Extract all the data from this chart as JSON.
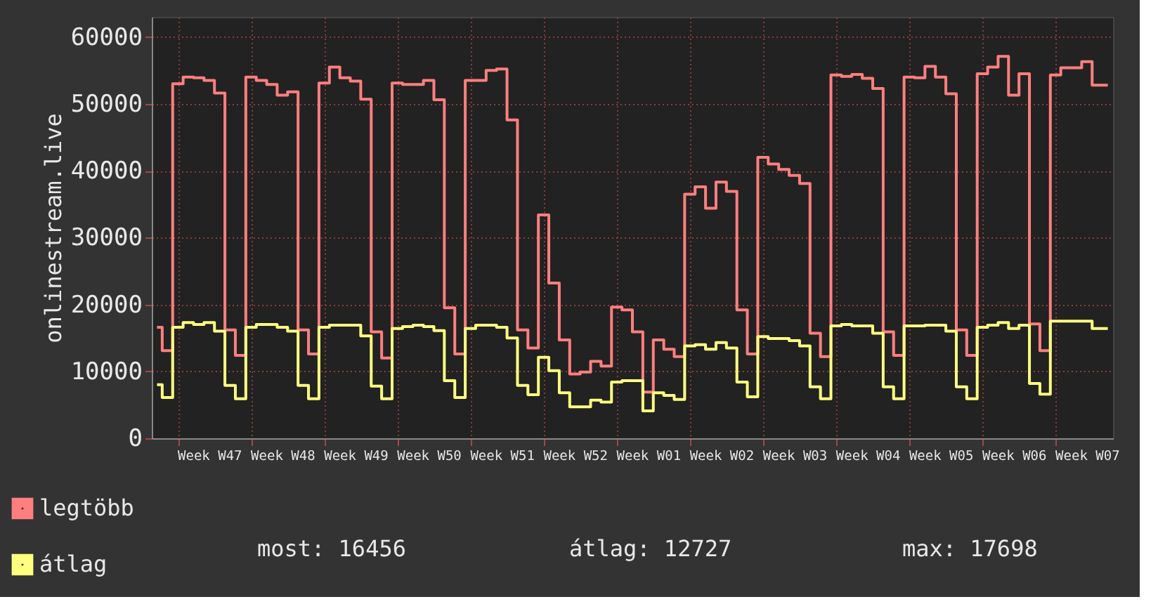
{
  "chart_data": {
    "type": "step",
    "ylabel": "onlinestream.live",
    "ylim": [
      0,
      63000
    ],
    "yticks": [
      0,
      10000,
      20000,
      30000,
      40000,
      50000,
      60000
    ],
    "categories": [
      null,
      null,
      null,
      null,
      null,
      "Week W47",
      null,
      null,
      null,
      null,
      null,
      null,
      "Week W48",
      null,
      null,
      null,
      null,
      null,
      null,
      "Week W49",
      null,
      null,
      null,
      null,
      null,
      null,
      "Week W50",
      null,
      null,
      null,
      null,
      null,
      null,
      "Week W51",
      null,
      null,
      null,
      null,
      null,
      null,
      "Week W52",
      null,
      null,
      null,
      null,
      null,
      null,
      "Week W01",
      null,
      null,
      null,
      null,
      null,
      null,
      "Week W02",
      null,
      null,
      null,
      null,
      null,
      null,
      "Week W03",
      null,
      null,
      null,
      null,
      null,
      null,
      "Week W04",
      null,
      null,
      null,
      null,
      null,
      null,
      "Week W05",
      null,
      null,
      null,
      null,
      null,
      null,
      "Week W06",
      null,
      null,
      null,
      null,
      null,
      null,
      "Week W07",
      null,
      null
    ],
    "grid": true,
    "legend": "bottom left",
    "line_style": "solid",
    "annotations": [
      "most: 16456",
      "átlag: 12727",
      "max: 17698"
    ],
    "series": [
      {
        "name": "legtöbb",
        "color": "#ff7f7f",
        "values": [
          16600,
          13100,
          53000,
          54000,
          53900,
          53500,
          51600,
          16200,
          12400,
          54000,
          53500,
          52900,
          51300,
          51800,
          16200,
          12600,
          53100,
          55500,
          53900,
          53400,
          50700,
          15900,
          12000,
          53100,
          52900,
          52900,
          53500,
          50600,
          19500,
          12600,
          53500,
          53500,
          55000,
          55200,
          47600,
          16200,
          13500,
          33400,
          23200,
          14700,
          9600,
          9900,
          11500,
          10800,
          19600,
          19200,
          15900,
          6900,
          14700,
          13300,
          12200,
          36500,
          37600,
          34400,
          38300,
          36900,
          19200,
          12600,
          42000,
          41000,
          40200,
          39300,
          38100,
          15700,
          12200,
          54300,
          54100,
          54400,
          53800,
          52300,
          15900,
          12400,
          54000,
          53900,
          55600,
          54000,
          51500,
          16200,
          12400,
          54500,
          55500,
          57100,
          51300,
          54500,
          17100,
          13100,
          54300,
          55400,
          55400,
          56300,
          52800,
          52800
        ]
      },
      {
        "name": "átlag",
        "color": "#ffff7f",
        "values": [
          8000,
          6100,
          16600,
          17300,
          17000,
          17300,
          16000,
          7900,
          5900,
          16600,
          17000,
          17000,
          16600,
          16000,
          7900,
          5900,
          16600,
          16900,
          16900,
          16900,
          15300,
          7800,
          5900,
          16400,
          16700,
          16900,
          16700,
          16100,
          8600,
          6100,
          16400,
          16900,
          16900,
          16600,
          15000,
          7900,
          6500,
          12100,
          10100,
          6800,
          4700,
          4700,
          5700,
          5400,
          8400,
          8600,
          8600,
          4100,
          6800,
          6400,
          5800,
          13800,
          14000,
          13300,
          14300,
          13500,
          8400,
          6200,
          15200,
          14900,
          14900,
          14600,
          13800,
          7700,
          5900,
          16800,
          17000,
          16800,
          16800,
          15700,
          7700,
          5900,
          16800,
          16800,
          16900,
          16900,
          16000,
          7700,
          5900,
          16600,
          16900,
          17300,
          16400,
          16900,
          8200,
          6600,
          17500,
          17500,
          17500,
          17500,
          16400,
          16400
        ]
      }
    ]
  }
}
